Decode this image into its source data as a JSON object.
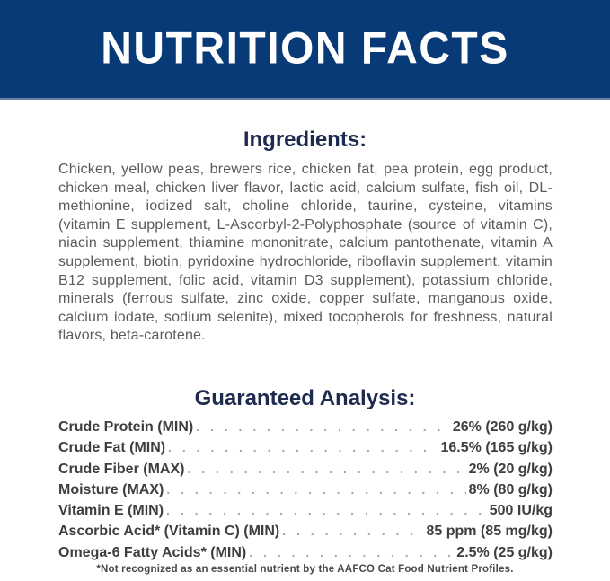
{
  "header": {
    "title": "NUTRITION FACTS"
  },
  "ingredients": {
    "heading": "Ingredients:",
    "text": "Chicken, yellow peas, brewers rice, chicken fat, pea protein, egg product, chicken meal, chicken liver flavor, lactic acid, calcium sulfate, fish oil, DL-methionine, iodized salt, choline chloride, taurine, cysteine, vitamins (vitamin E supplement, L-Ascorbyl-2-Polyphosphate (source of vitamin C), niacin supplement, thiamine mononitrate, calcium pantothenate, vitamin A supplement, biotin, pyridoxine hydrochloride, riboflavin supplement, vitamin B12 supplement, folic acid, vitamin D3 supplement), potassium chloride, minerals (ferrous sulfate, zinc oxide, copper sulfate, manganous oxide, calcium iodate, sodium selenite), mixed tocopherols for freshness, natural flavors, beta-carotene."
  },
  "guaranteed_analysis": {
    "heading": "Guaranteed Analysis:",
    "rows": [
      {
        "label": "Crude Protein (MIN)",
        "value": "26% (260 g/kg)"
      },
      {
        "label": "Crude Fat (MIN)",
        "value": "16.5% (165 g/kg)"
      },
      {
        "label": "Crude Fiber (MAX)",
        "value": "2% (20 g/kg)"
      },
      {
        "label": "Moisture (MAX)",
        "value": "8% (80 g/kg)"
      },
      {
        "label": "Vitamin E (MIN)",
        "value": "500 IU/kg"
      },
      {
        "label": "Ascorbic Acid* (Vitamin C) (MIN)",
        "value": "85 ppm (85 mg/kg)"
      },
      {
        "label": "Omega-6 Fatty Acids* (MIN)",
        "value": "2.5% (25 g/kg)"
      }
    ],
    "footnote": "*Not recognized as an essential nutrient by the AAFCO Cat Food Nutrient Profiles."
  },
  "colors": {
    "banner_bg": "#093A78",
    "banner_edge": "#6F80A8",
    "heading_text": "#1E2A4E",
    "body_text": "#5A5B5E",
    "table_text": "#3E3E40",
    "dot_leader": "#A5A5A7",
    "footnote_text": "#48484A"
  }
}
